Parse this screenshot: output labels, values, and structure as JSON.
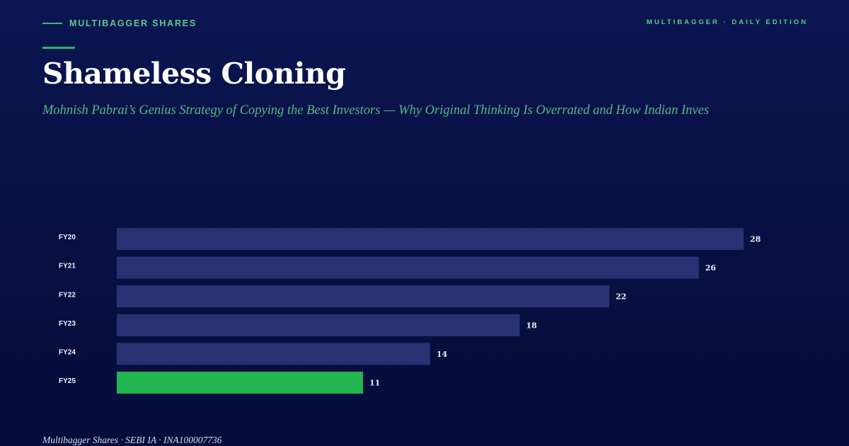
{
  "header": {
    "brand": "MULTIBAGGER SHARES",
    "edition": "MULTIBAGGER · DAILY EDITION"
  },
  "title": "Shameless Cloning",
  "subtitle": "Mohnish Pabrai’s Genius Strategy of Copying the Best Investors — Why Original Thinking Is Overrated and How Indian Inves",
  "footer": "Multibagger Shares · SEBI IA · INA100007736",
  "colors": {
    "bar": "#283272",
    "highlight": "#22b550",
    "accent": "#5ec98d"
  },
  "chart_data": {
    "type": "bar",
    "orientation": "horizontal",
    "categories": [
      "FY20",
      "FY21",
      "FY22",
      "FY23",
      "FY24",
      "FY25"
    ],
    "values": [
      28,
      26,
      22,
      18,
      14,
      11
    ],
    "highlight_index": 5,
    "xlim": [
      0,
      28
    ],
    "grid": false,
    "legend": "none"
  }
}
